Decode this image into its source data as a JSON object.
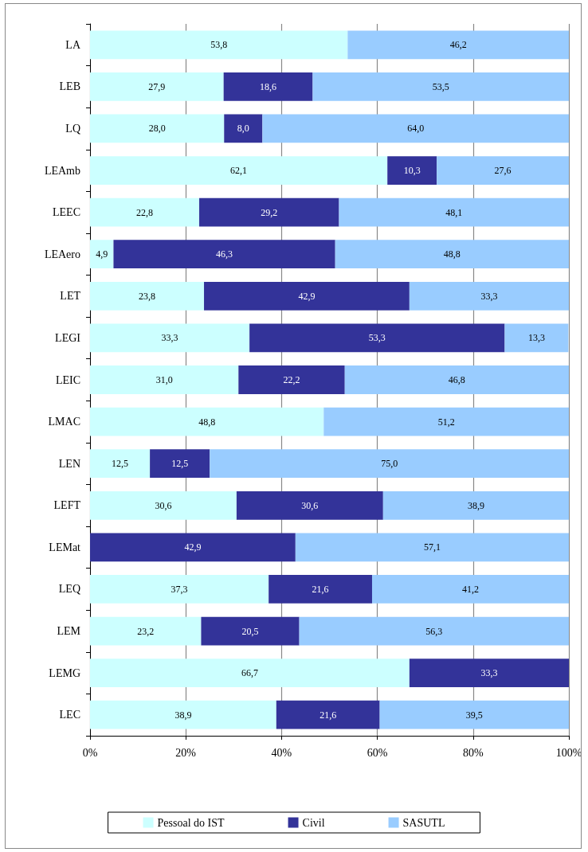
{
  "chart_data": {
    "type": "bar",
    "orientation": "horizontal",
    "stacked": true,
    "categories": [
      "LA",
      "LEB",
      "LQ",
      "LEAmb",
      "LEEC",
      "LEAero",
      "LET",
      "LEGI",
      "LEIC",
      "LMAC",
      "LEN",
      "LEFT",
      "LEMat",
      "LEQ",
      "LEM",
      "LEMG",
      "LEC"
    ],
    "series": [
      {
        "name": "Pessoal do IST",
        "color": "#ccffff",
        "values": [
          53.8,
          27.9,
          28.0,
          62.1,
          22.8,
          4.9,
          23.8,
          33.3,
          31.0,
          48.8,
          12.5,
          30.6,
          null,
          37.3,
          23.2,
          66.7,
          38.9
        ],
        "value_labels": [
          "53,8",
          "27,9",
          "28,0",
          "62,1",
          "22,8",
          "4,9",
          "23,8",
          "33,3",
          "31,0",
          "48,8",
          "12,5",
          "30,6",
          null,
          "37,3",
          "23,2",
          "66,7",
          "38,9"
        ]
      },
      {
        "name": "Civil",
        "color": "#333399",
        "values": [
          null,
          18.6,
          8.0,
          10.3,
          29.2,
          46.3,
          42.9,
          53.3,
          22.2,
          null,
          12.5,
          30.6,
          42.9,
          21.6,
          20.5,
          33.3,
          21.6
        ],
        "value_labels": [
          null,
          "18,6",
          "8,0",
          "10,3",
          "29,2",
          "46,3",
          "42,9",
          "53,3",
          "22,2",
          null,
          "12,5",
          "30,6",
          "42,9",
          "21,6",
          "20,5",
          "33,3",
          "21,6"
        ]
      },
      {
        "name": "SASUTL",
        "color": "#99ccff",
        "values": [
          46.2,
          53.5,
          64.0,
          27.6,
          48.1,
          48.8,
          33.3,
          13.3,
          46.8,
          51.2,
          75.0,
          38.9,
          57.1,
          41.2,
          56.3,
          null,
          39.5
        ],
        "value_labels": [
          "46,2",
          "53,5",
          "64,0",
          "27,6",
          "48,1",
          "48,8",
          "33,3",
          "13,3",
          "46,8",
          "51,2",
          "75,0",
          "38,9",
          "57,1",
          "41,2",
          "56,3",
          null,
          "39,5"
        ]
      }
    ],
    "xlim": [
      0,
      100
    ],
    "xticks": [
      {
        "value": 0,
        "label": "0%"
      },
      {
        "value": 20,
        "label": "20%"
      },
      {
        "value": 40,
        "label": "40%"
      },
      {
        "value": 60,
        "label": "60%"
      },
      {
        "value": 80,
        "label": "80%"
      },
      {
        "value": 100,
        "label": "100%"
      }
    ],
    "grid": "x",
    "legend": "bottom"
  }
}
